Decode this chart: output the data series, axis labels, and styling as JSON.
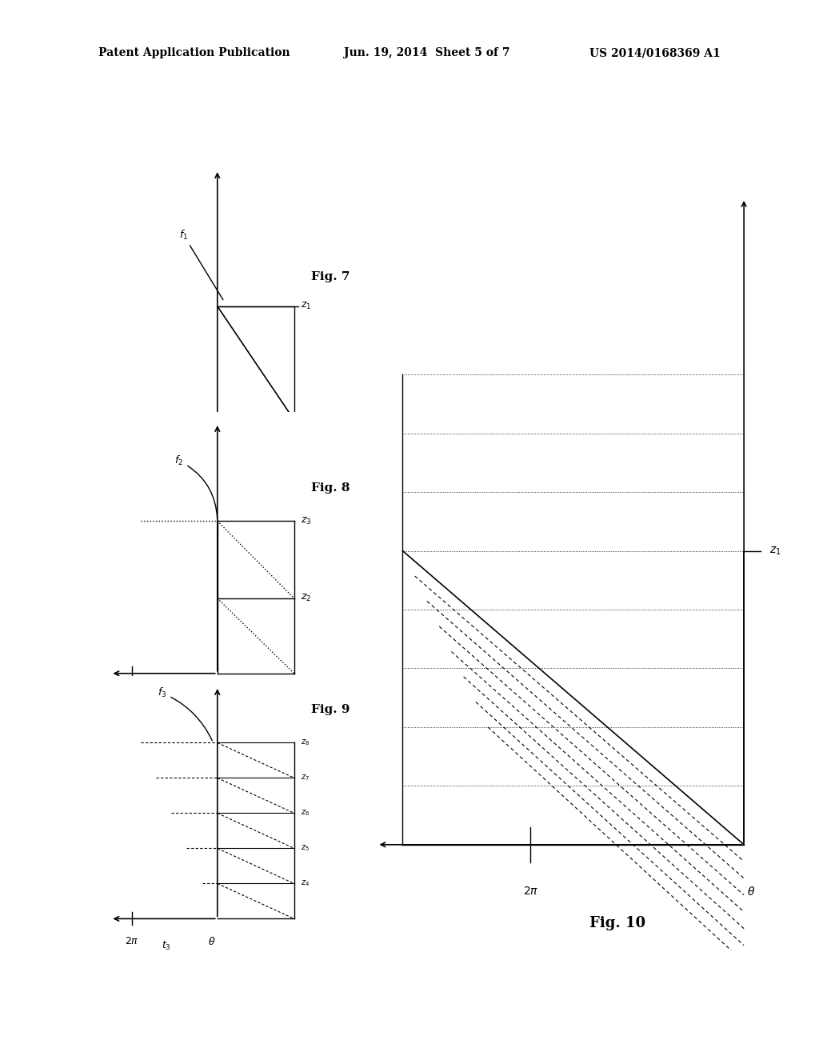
{
  "bg_color": "#ffffff",
  "header_text": "Patent Application Publication",
  "header_date": "Jun. 19, 2014  Sheet 5 of 7",
  "header_patent": "US 2014/0168369 A1",
  "fig7_label": "Fig. 7",
  "fig8_label": "Fig. 8",
  "fig9_label": "Fig. 9",
  "fig10_label": "Fig. 10"
}
